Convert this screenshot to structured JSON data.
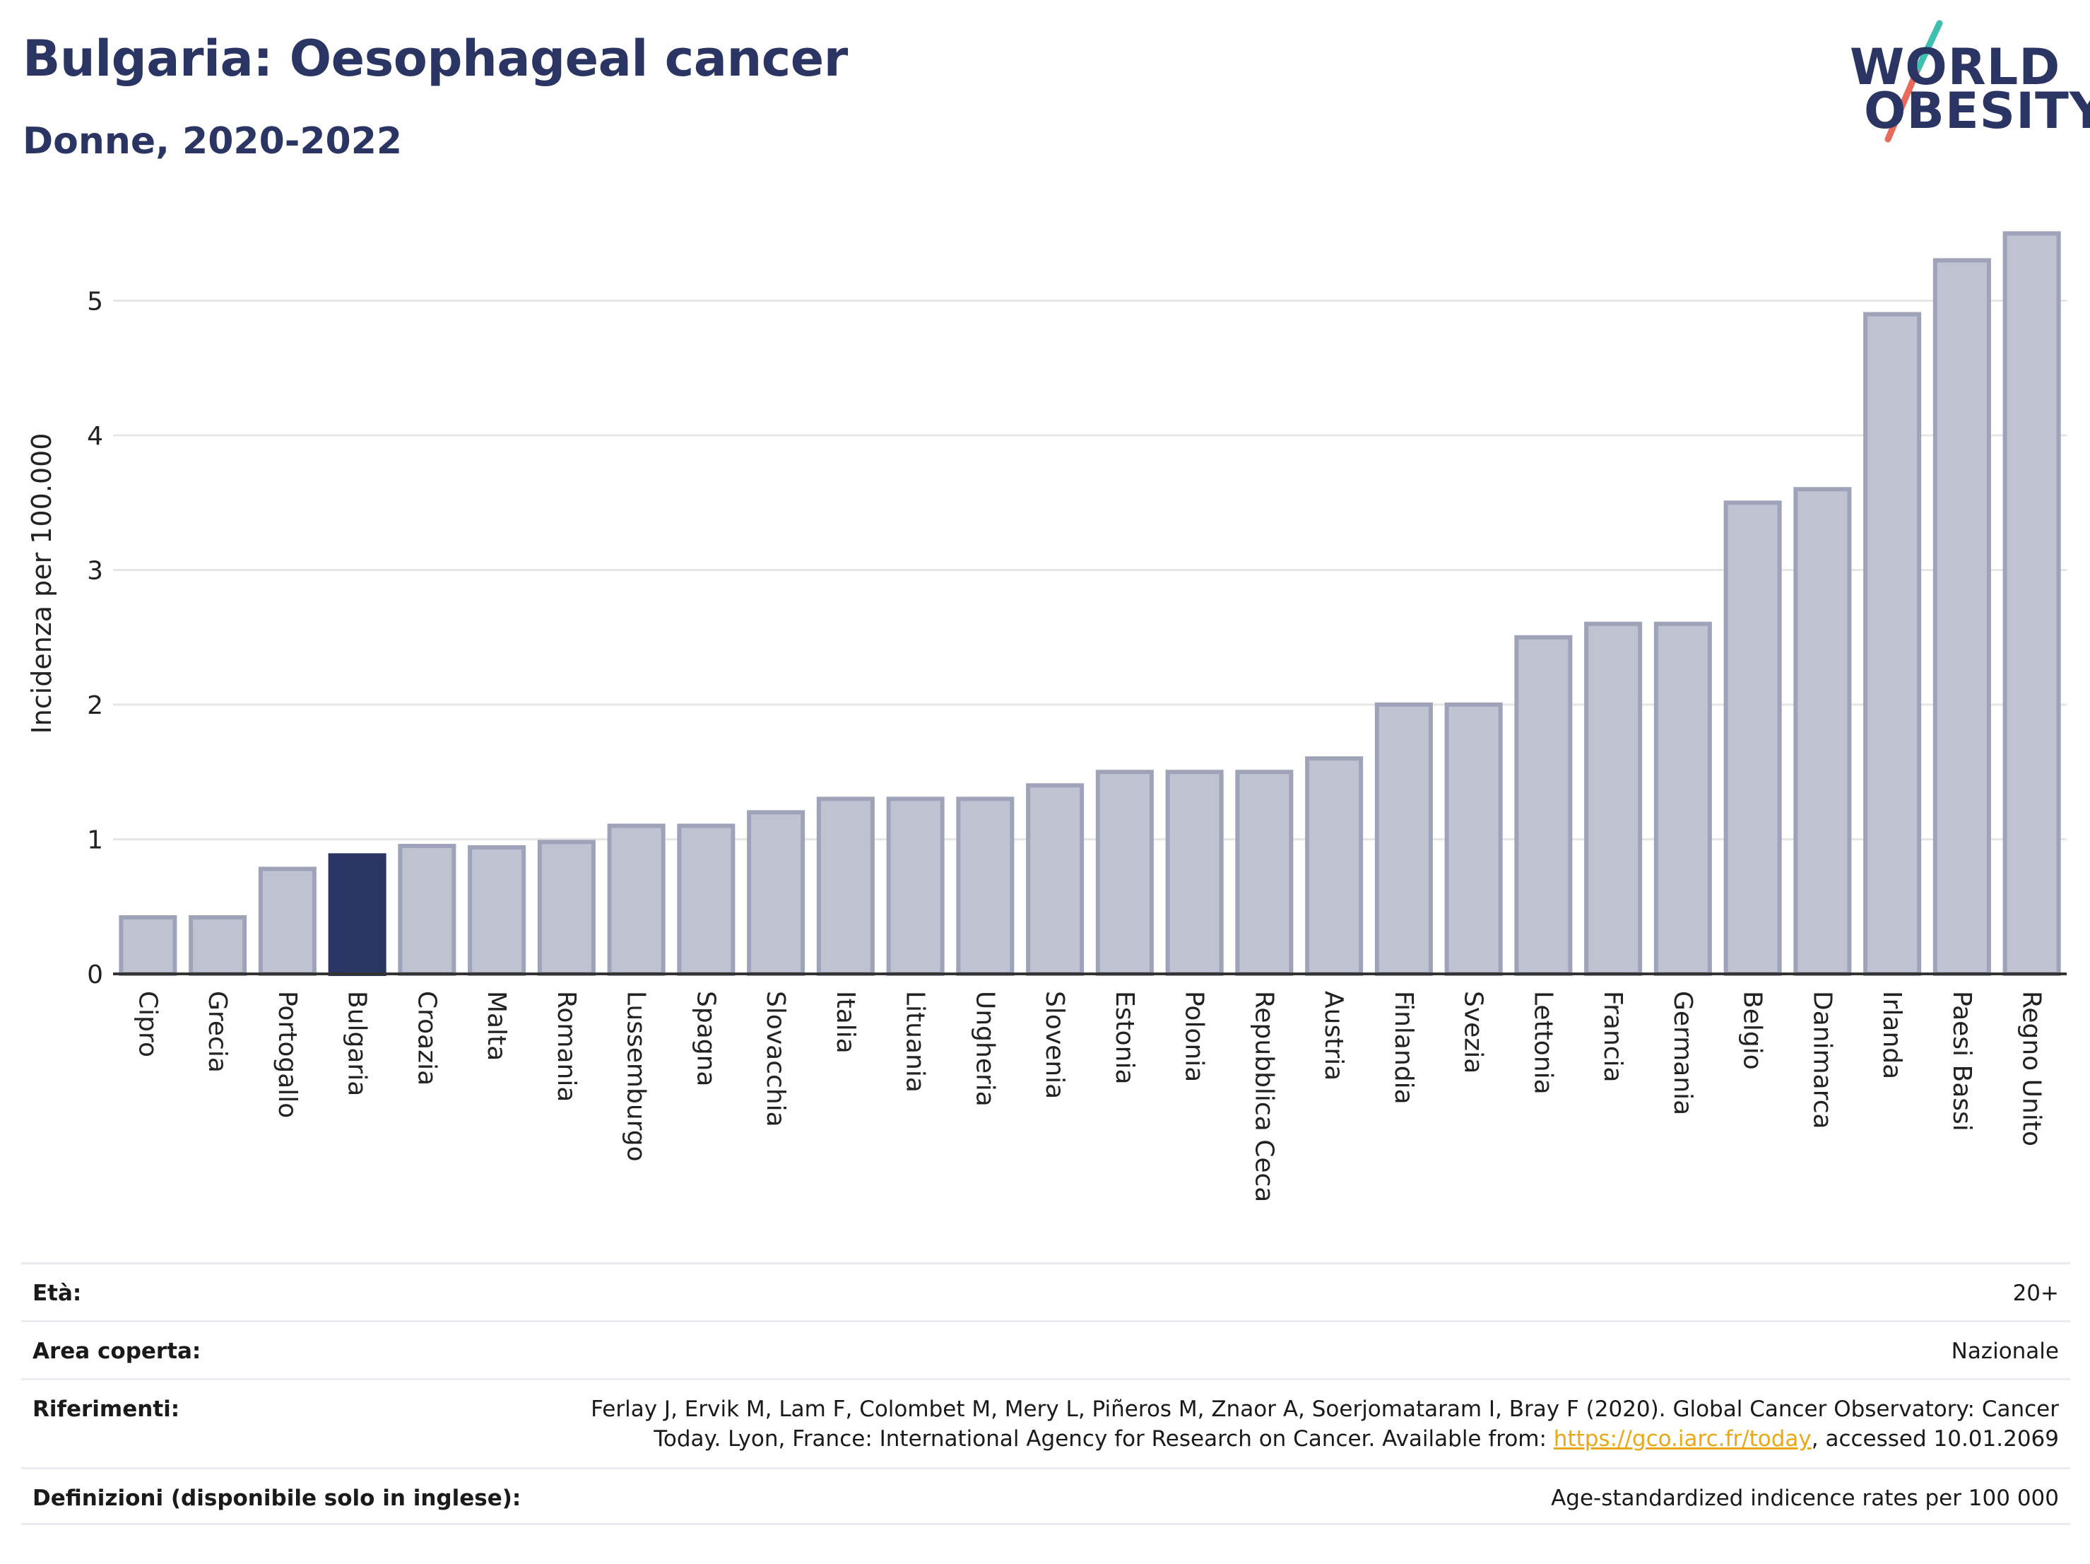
{
  "header": {
    "title": "Bulgaria: Oesophageal cancer",
    "subtitle": "Donne, 2020-2022"
  },
  "logo": {
    "line1": "WORLD",
    "line2": "OBESITY",
    "slash_colors": [
      "#3ebfb0",
      "#e86a5b"
    ]
  },
  "chart_data": {
    "type": "bar",
    "title": "",
    "xlabel": "",
    "ylabel": "Incidenza per 100.000",
    "ylim": [
      0,
      5.6
    ],
    "yticks": [
      0,
      1,
      2,
      3,
      4,
      5
    ],
    "grid": true,
    "highlight": "Bulgaria",
    "colors": {
      "default": "#bfc2d0",
      "default_border": "#9ea3ba",
      "highlight": "#2b3563",
      "axis": "#333333",
      "grid": "#e6e6e6"
    },
    "categories": [
      "Cipro",
      "Grecia",
      "Portogallo",
      "Bulgaria",
      "Croazia",
      "Malta",
      "Romania",
      "Lussemburgo",
      "Spagna",
      "Slovacchia",
      "Italia",
      "Lituania",
      "Ungheria",
      "Slovenia",
      "Estonia",
      "Polonia",
      "Repubblica Ceca",
      "Austria",
      "Finlandia",
      "Svezia",
      "Lettonia",
      "Francia",
      "Germania",
      "Belgio",
      "Danimarca",
      "Irlanda",
      "Paesi Bassi",
      "Regno Unito"
    ],
    "values": [
      0.42,
      0.42,
      0.78,
      0.88,
      0.95,
      0.94,
      0.98,
      1.1,
      1.1,
      1.2,
      1.3,
      1.3,
      1.3,
      1.4,
      1.5,
      1.5,
      1.5,
      1.6,
      2.0,
      2.0,
      2.5,
      2.6,
      2.6,
      3.5,
      3.6,
      4.9,
      5.3,
      5.5
    ]
  },
  "meta": [
    {
      "label": "Età:",
      "value": "20+"
    },
    {
      "label": "Area coperta:",
      "value": "Nazionale"
    },
    {
      "label": "Riferimenti:",
      "value_pre": "Ferlay J, Ervik M, Lam F, Colombet M, Mery L, Piñeros M, Znaor A, Soerjomataram I, Bray F (2020). Global Cancer Observatory: Cancer Today. Lyon, France: International Agency for Research on Cancer. Available from: ",
      "link": "https://gco.iarc.fr/today",
      "value_post": ", accessed 10.01.2069"
    },
    {
      "label": "Definizioni (disponibile solo in inglese):",
      "value": "Age-standardized indicence rates per 100 000"
    }
  ]
}
